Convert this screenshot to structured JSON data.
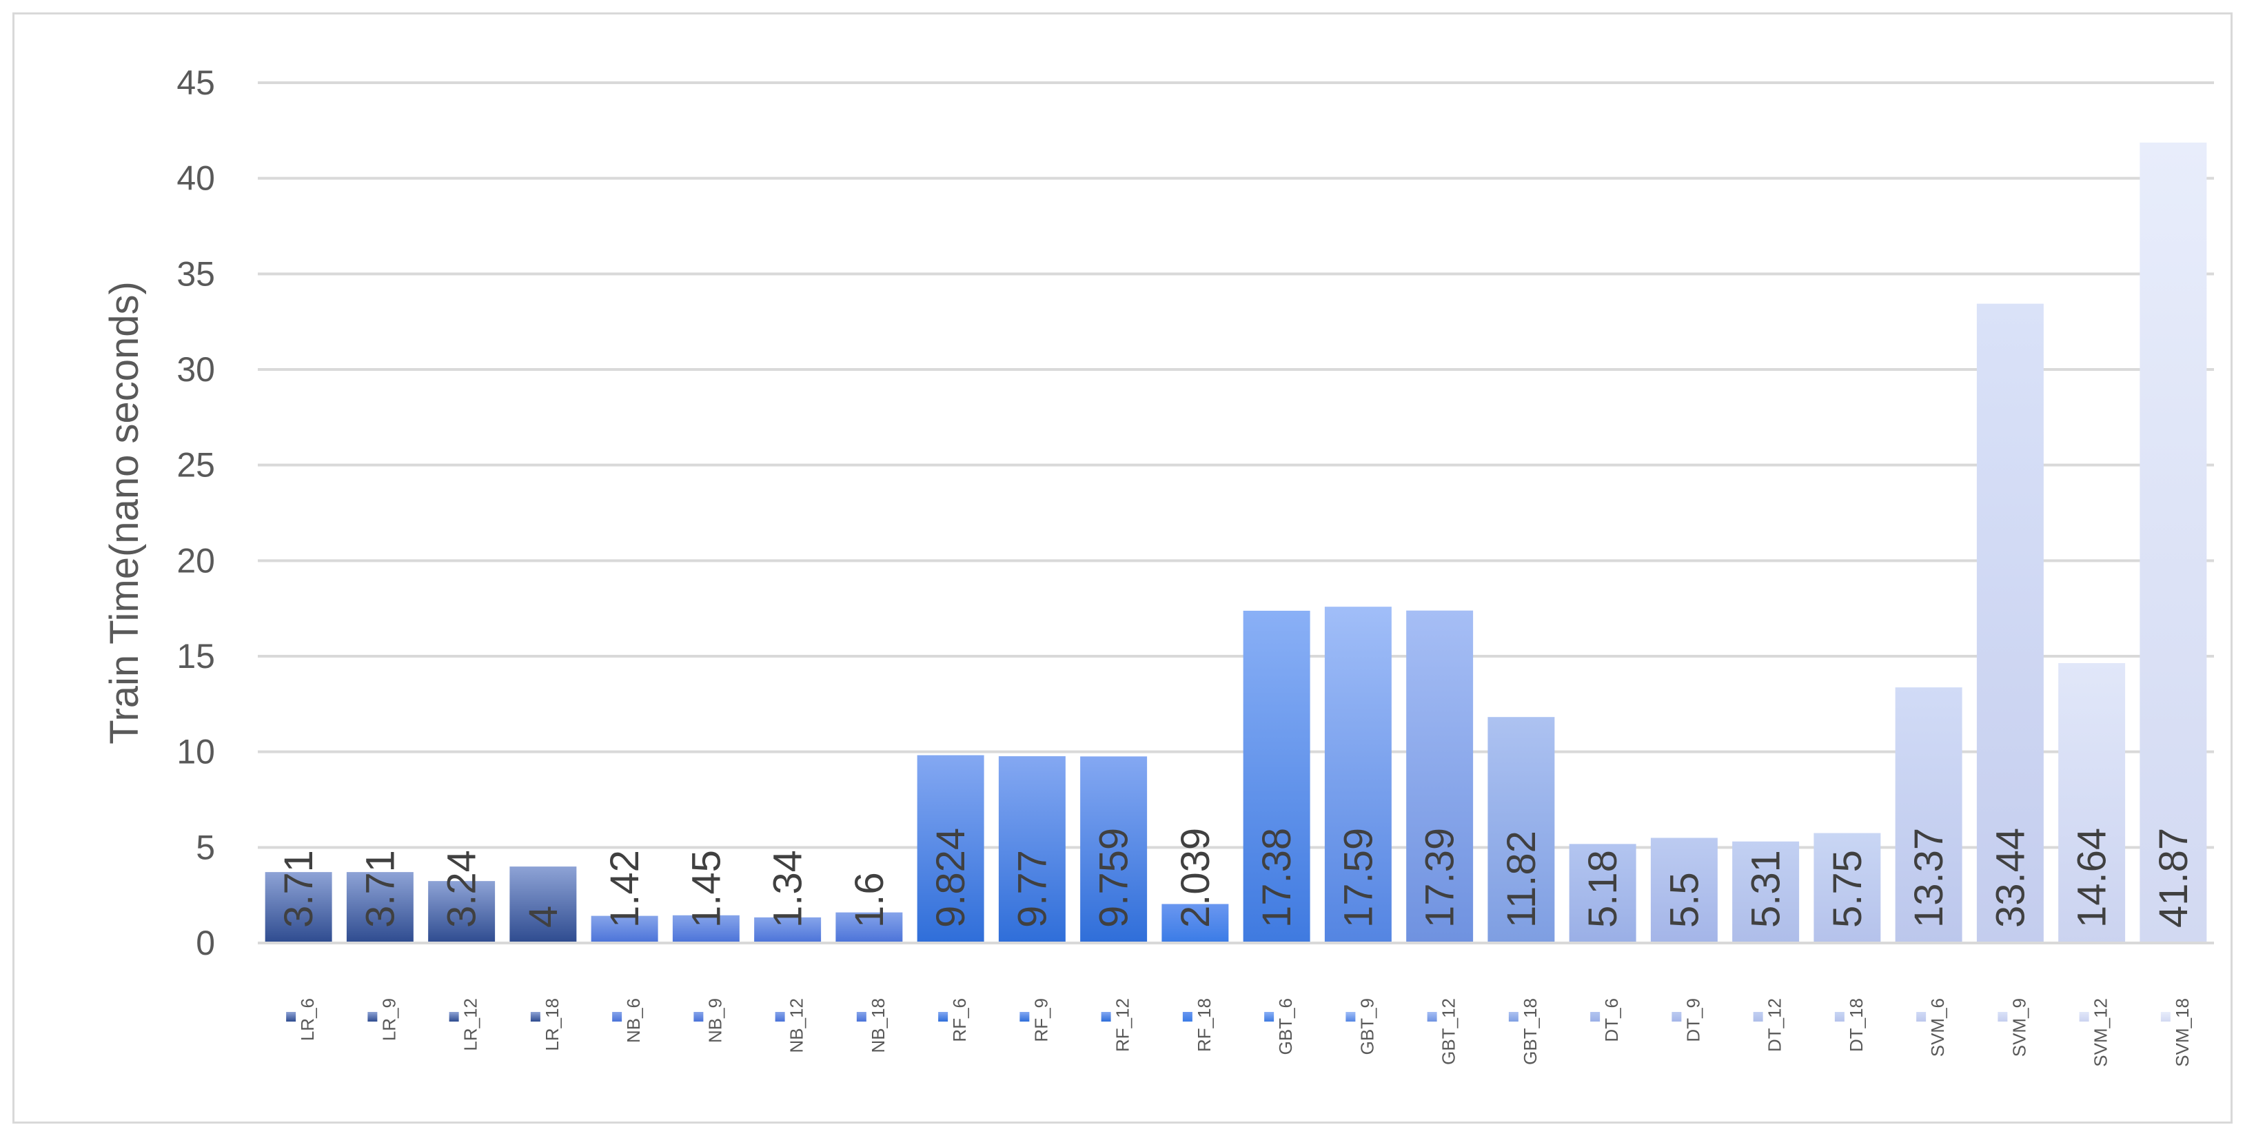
{
  "chart_data": {
    "type": "bar",
    "ylabel": "Train Time(nano seconds)",
    "ylim": [
      0,
      45
    ],
    "yticks": [
      0,
      5,
      10,
      15,
      20,
      25,
      30,
      35,
      40,
      45
    ],
    "grid": true,
    "legend_position": "bottom",
    "categories": [
      "LR_6",
      "LR_9",
      "LR_12",
      "LR_18",
      "NB_6",
      "NB_9",
      "NB_12",
      "NB_18",
      "RF_6",
      "RF_9",
      "RF_12",
      "RF_18",
      "GBT_6",
      "GBT_9",
      "GBT_12",
      "GBT_18",
      "DT_6",
      "DT_9",
      "DT_12",
      "DT_18",
      "SVM_6",
      "SVM_9",
      "SVM_12",
      "SVM_18"
    ],
    "values": [
      3.71,
      3.71,
      3.24,
      4,
      1.42,
      1.45,
      1.34,
      1.6,
      9.824,
      9.77,
      9.759,
      2.039,
      17.38,
      17.59,
      17.39,
      11.82,
      5.18,
      5.5,
      5.31,
      5.75,
      13.37,
      33.44,
      14.64,
      41.87
    ],
    "data_labels": [
      "3.71",
      "3.71",
      "3.24",
      "4",
      "1.42",
      "1.45",
      "1.34",
      "1.6",
      "9.824",
      "9.77",
      "9.759",
      "2.039",
      "17.38",
      "17.59",
      "17.39",
      "11.82",
      "5.18",
      "5.5",
      "5.31",
      "5.75",
      "13.37",
      "33.44",
      "14.64",
      "41.87"
    ],
    "colors": {
      "top": [
        "#8ea3d6",
        "#8ea3d6",
        "#8ea3d6",
        "#8ea3d6",
        "#86a4ea",
        "#86a4ea",
        "#86a4ea",
        "#86a4ea",
        "#84a8f2",
        "#84a8f2",
        "#84a8f2",
        "#6a97f0",
        "#8ab0f6",
        "#a1bef8",
        "#a6bef5",
        "#adc2f1",
        "#b3c5f0",
        "#bccbf1",
        "#c2d0f2",
        "#c9d6f4",
        "#d1dbf6",
        "#dae2f8",
        "#e1e7f9",
        "#e8edfb"
      ],
      "bottom": [
        "#2e4b8f",
        "#2e4b8f",
        "#2e4b8f",
        "#2e4b8f",
        "#4a72d8",
        "#4a72d8",
        "#4a72d8",
        "#4a72d8",
        "#2f6ed9",
        "#2f6ed9",
        "#2f6ed9",
        "#3a7be6",
        "#3f7ae0",
        "#5485e2",
        "#6f92e0",
        "#7e9ee2",
        "#9aafe6",
        "#a4b5e8",
        "#aebde9",
        "#b5c2eb",
        "#bcc7ec",
        "#c4cdee",
        "#cbd3f0",
        "#d2d9f2"
      ]
    }
  }
}
